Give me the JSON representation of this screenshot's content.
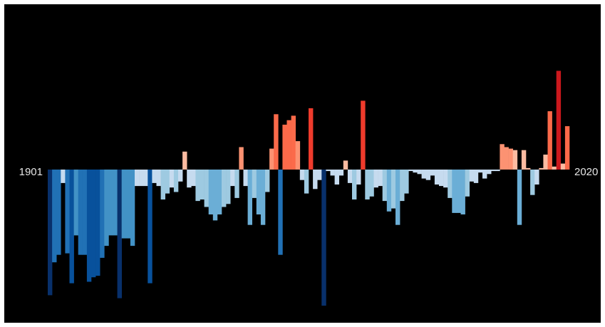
{
  "chart_data": {
    "type": "bar",
    "start_label": "1901",
    "end_label": "2020",
    "x": [
      1901,
      1902,
      1903,
      1904,
      1905,
      1906,
      1907,
      1908,
      1909,
      1910,
      1911,
      1912,
      1913,
      1914,
      1915,
      1916,
      1917,
      1918,
      1919,
      1920,
      1921,
      1922,
      1923,
      1924,
      1925,
      1926,
      1927,
      1928,
      1929,
      1930,
      1931,
      1932,
      1933,
      1934,
      1935,
      1936,
      1937,
      1938,
      1939,
      1940,
      1941,
      1942,
      1943,
      1944,
      1945,
      1946,
      1947,
      1948,
      1949,
      1950,
      1951,
      1952,
      1953,
      1954,
      1955,
      1956,
      1957,
      1958,
      1959,
      1960,
      1961,
      1962,
      1963,
      1964,
      1965,
      1966,
      1967,
      1968,
      1969,
      1970,
      1971,
      1972,
      1973,
      1974,
      1975,
      1976,
      1977,
      1978,
      1979,
      1980,
      1981,
      1982,
      1983,
      1984,
      1985,
      1986,
      1987,
      1988,
      1989,
      1990,
      1991,
      1992,
      1993,
      1994,
      1995,
      1996,
      1997,
      1998,
      1999,
      2000,
      2001,
      2002,
      2003,
      2004,
      2005,
      2006,
      2007,
      2008,
      2009,
      2010,
      2011,
      2012,
      2013,
      2014,
      2015,
      2016,
      2017,
      2018,
      2019,
      2020
    ],
    "values": [
      -0.84,
      -0.62,
      -0.57,
      -0.09,
      -0.56,
      -0.76,
      -0.44,
      -0.57,
      -0.57,
      -0.75,
      -0.72,
      -0.71,
      -0.59,
      -0.51,
      -0.44,
      -0.44,
      -0.86,
      -0.46,
      -0.46,
      -0.51,
      -0.11,
      -0.11,
      -0.11,
      -0.76,
      -0.09,
      -0.11,
      -0.2,
      -0.16,
      -0.12,
      -0.15,
      -0.08,
      0.12,
      -0.12,
      -0.11,
      -0.21,
      -0.2,
      -0.25,
      -0.3,
      -0.34,
      -0.3,
      -0.25,
      -0.23,
      -0.11,
      -0.19,
      0.15,
      -0.11,
      -0.37,
      -0.19,
      -0.3,
      -0.37,
      -0.15,
      0.14,
      0.37,
      -0.57,
      0.3,
      0.33,
      0.36,
      0.19,
      -0.07,
      -0.16,
      0.41,
      -0.13,
      -0.07,
      -0.91,
      -0.01,
      -0.04,
      -0.1,
      -0.04,
      0.06,
      -0.09,
      -0.2,
      -0.1,
      0.46,
      -0.2,
      -0.18,
      -0.12,
      -0.11,
      -0.21,
      -0.28,
      -0.26,
      -0.37,
      -0.21,
      -0.16,
      -0.01,
      -0.02,
      -0.03,
      -0.06,
      -0.07,
      -0.04,
      -0.1,
      -0.11,
      -0.12,
      -0.19,
      -0.29,
      -0.29,
      -0.3,
      -0.18,
      -0.08,
      -0.09,
      -0.02,
      -0.06,
      -0.03,
      -0.01,
      -0.01,
      0.17,
      0.15,
      0.14,
      0.13,
      -0.37,
      0.13,
      0.01,
      -0.17,
      -0.1,
      0.01,
      0.1,
      0.39,
      0.02,
      0.66,
      0.04,
      0.29
    ]
  }
}
